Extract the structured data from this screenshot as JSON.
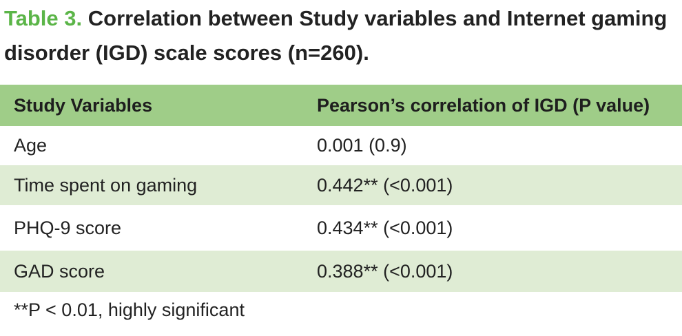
{
  "caption": {
    "label": "Table 3.",
    "text": " Correlation between Study variables and Internet gaming disorder (IGD) scale scores (n=260)."
  },
  "table": {
    "headers": [
      "Study Variables",
      "Pearson’s correlation of IGD (P value)"
    ],
    "rows": [
      [
        "Age",
        "0.001 (0.9)"
      ],
      [
        "Time spent on gaming",
        "0.442** (<0.001)"
      ],
      [
        "PHQ-9 score",
        "0.434** (<0.001)"
      ],
      [
        "GAD score",
        "0.388** (<0.001)"
      ]
    ]
  },
  "footnote": "**P < 0.01, highly significant",
  "colors": {
    "label_green": "#5bb548",
    "header_bg": "#9fcd88",
    "alt_row_bg": "#dfecd4"
  }
}
